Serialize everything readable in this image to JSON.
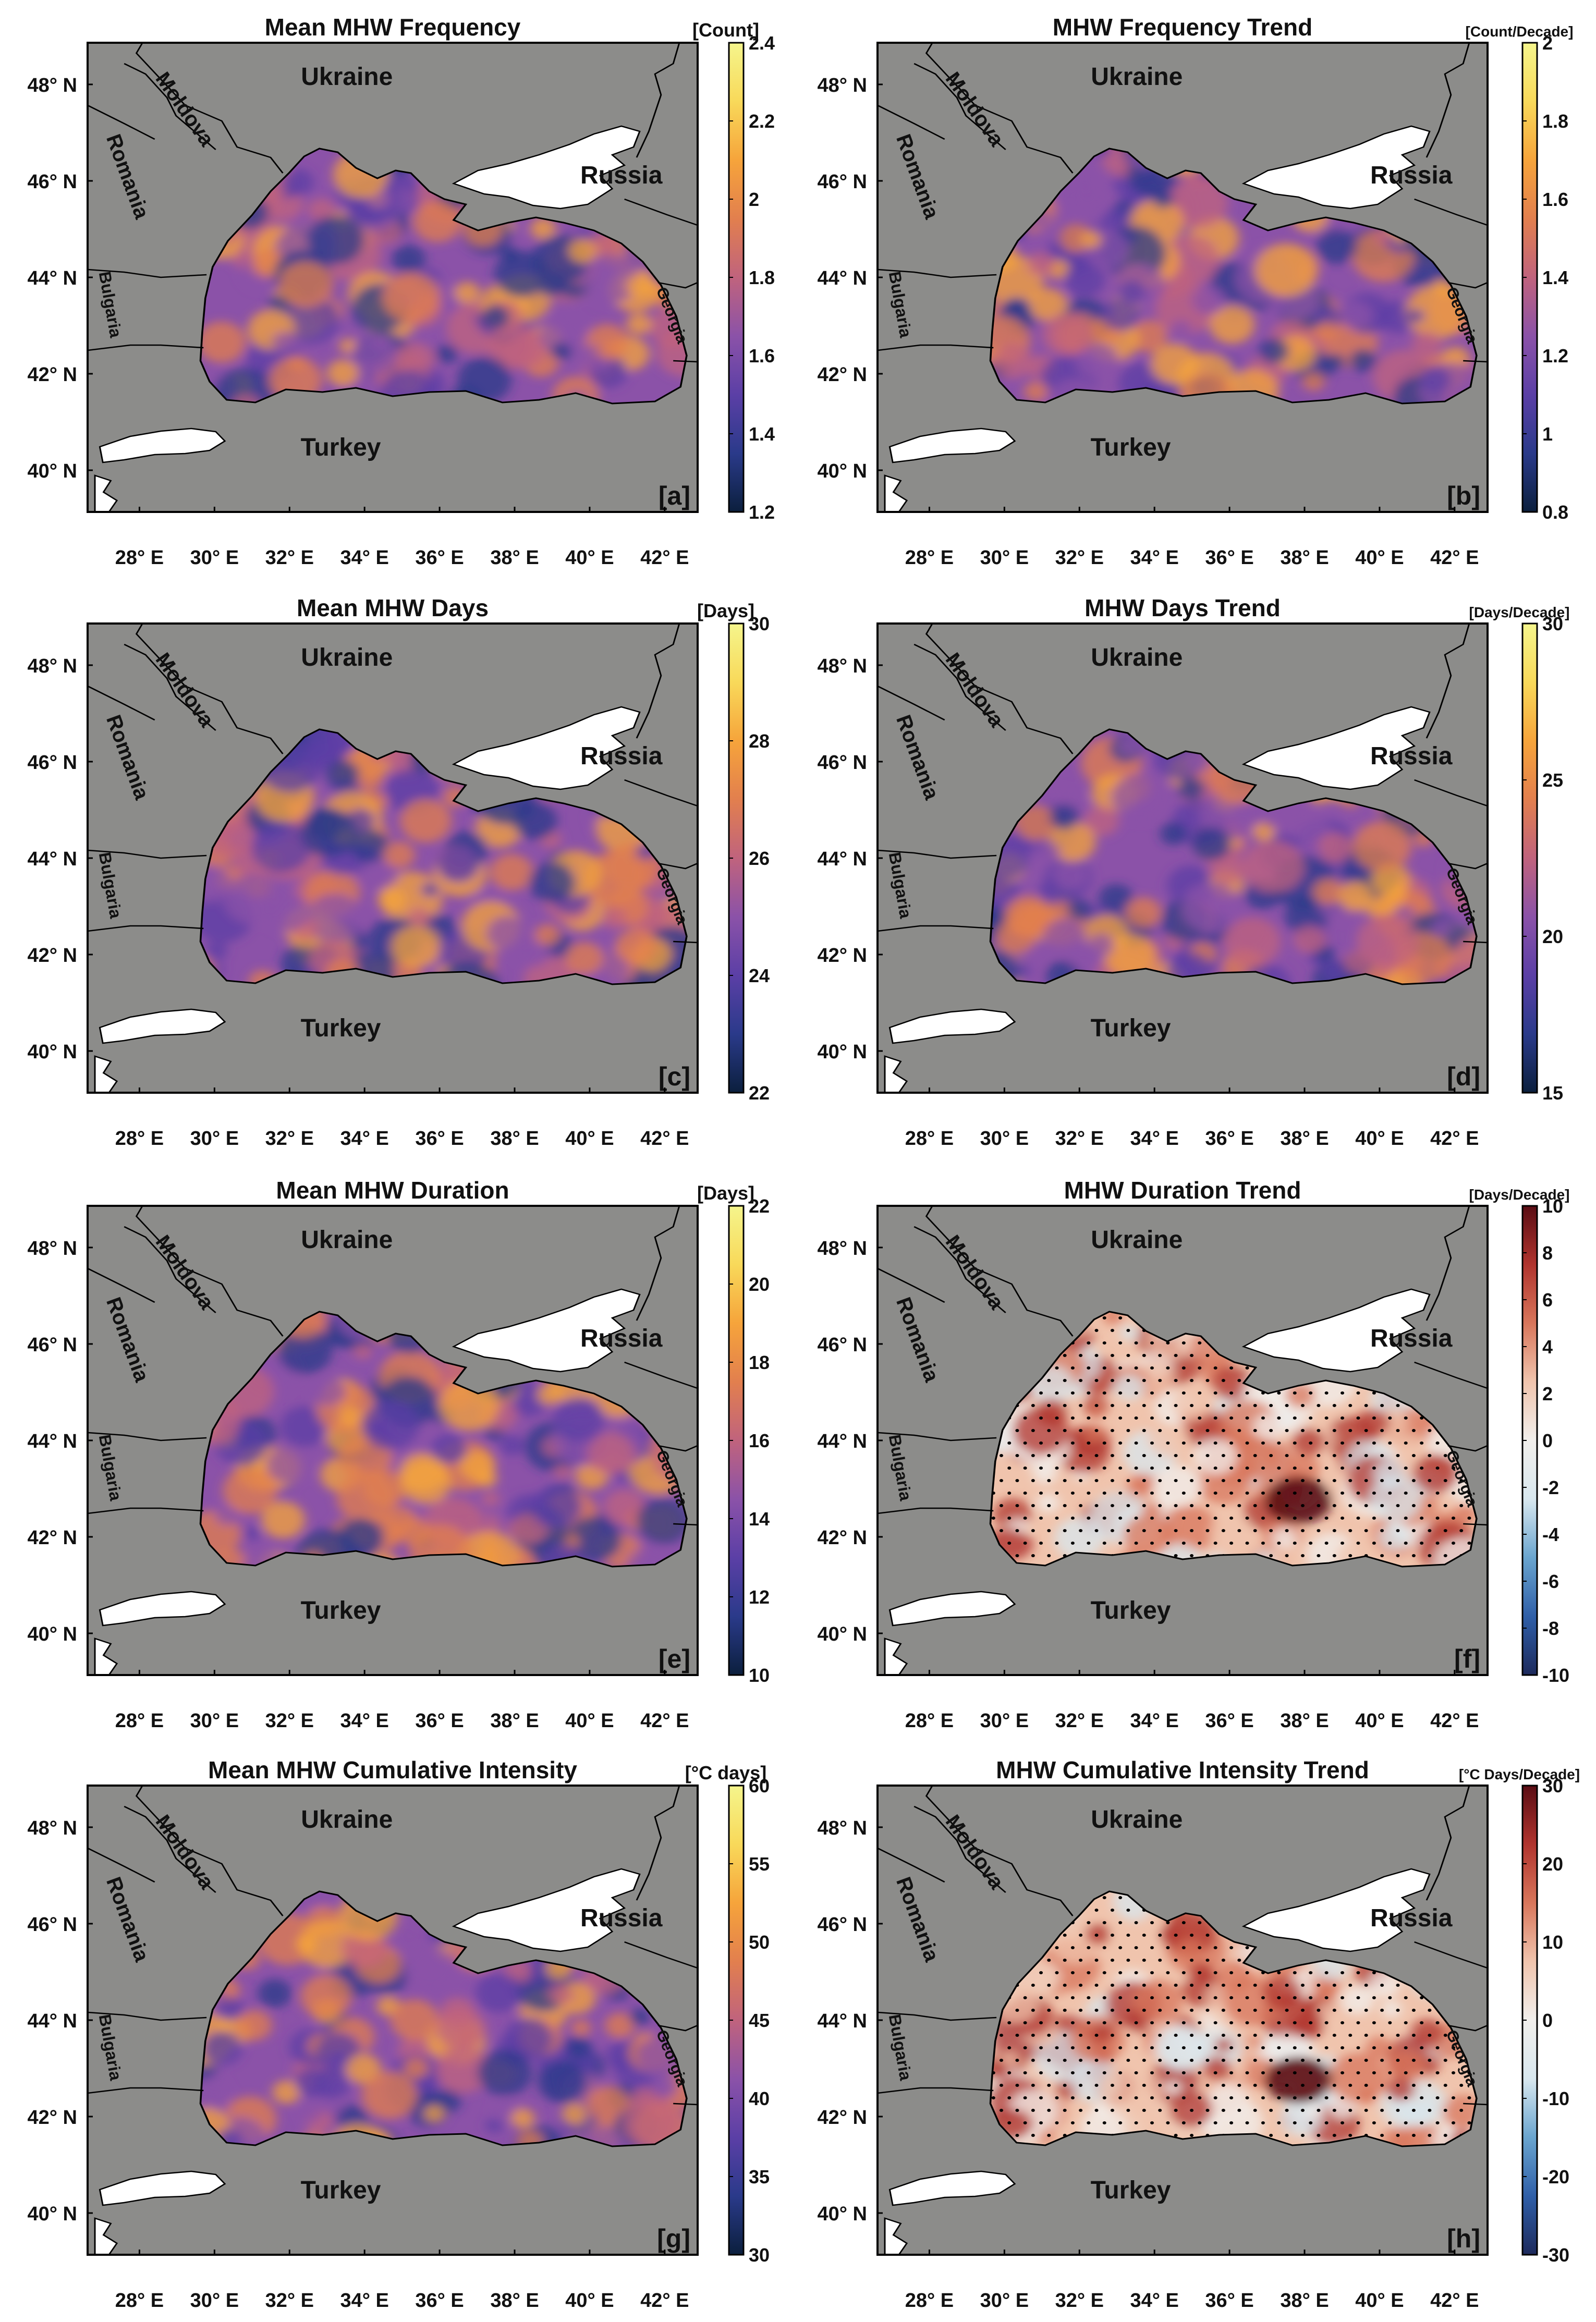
{
  "figure": {
    "lat_ticks": [
      "48° N",
      "46° N",
      "44° N",
      "42° N",
      "40° N"
    ],
    "lon_ticks": [
      "28° E",
      "30° E",
      "32° E",
      "34° E",
      "36° E",
      "38° E",
      "40° E",
      "42° E"
    ],
    "countries": [
      "Ukraine",
      "Moldova",
      "Romania",
      "Russia",
      "Bulgaria",
      "Georgia",
      "Turkey"
    ],
    "panels": [
      {
        "title": "Mean MHW Frequency",
        "letter": "[a]",
        "unit": "[Count]",
        "ticks": [
          "2.4",
          "2.2",
          "2",
          "1.8",
          "1.6",
          "1.4",
          "1.2"
        ],
        "range": [
          1.2,
          2.4
        ],
        "colormap": "thermal",
        "stipple": false
      },
      {
        "title": "MHW Frequency Trend",
        "letter": "[b]",
        "unit": "[Count/Decade]",
        "ticks": [
          "2",
          "1.8",
          "1.6",
          "1.4",
          "1.2",
          "1",
          "0.8"
        ],
        "range": [
          0.8,
          2.0
        ],
        "colormap": "thermal",
        "stipple": false
      },
      {
        "title": "Mean MHW Days",
        "letter": "[c]",
        "unit": "[Days]",
        "ticks": [
          "30",
          "28",
          "26",
          "24",
          "22"
        ],
        "range": [
          22,
          30
        ],
        "colormap": "thermal",
        "stipple": false
      },
      {
        "title": "MHW Days Trend",
        "letter": "[d]",
        "unit": "[Days/Decade]",
        "ticks": [
          "30",
          "25",
          "20",
          "15"
        ],
        "range": [
          15,
          30
        ],
        "colormap": "thermal",
        "stipple": false
      },
      {
        "title": "Mean MHW Duration",
        "letter": "[e]",
        "unit": "[Days]",
        "ticks": [
          "22",
          "20",
          "18",
          "16",
          "14",
          "12",
          "10"
        ],
        "range": [
          10,
          22
        ],
        "colormap": "thermal",
        "stipple": false
      },
      {
        "title": "MHW Duration Trend",
        "letter": "[f]",
        "unit": "[Days/Decade]",
        "ticks": [
          "10",
          "8",
          "6",
          "4",
          "2",
          "0",
          "-2",
          "-4",
          "-6",
          "-8",
          "-10"
        ],
        "range": [
          -10,
          10
        ],
        "colormap": "balance",
        "stipple": true
      },
      {
        "title": "Mean MHW Cumulative Intensity",
        "letter": "[g]",
        "unit": "[°C days]",
        "ticks": [
          "60",
          "55",
          "50",
          "45",
          "40",
          "35",
          "30"
        ],
        "range": [
          30,
          60
        ],
        "colormap": "thermal",
        "stipple": false
      },
      {
        "title": "MHW Cumulative Intensity Trend",
        "letter": "[h]",
        "unit": "[°C Days/Decade]",
        "ticks": [
          "30",
          "20",
          "10",
          "0",
          "-10",
          "-20",
          "-30"
        ],
        "range": [
          -30,
          30
        ],
        "colormap": "balance",
        "stipple": true
      }
    ],
    "colors": {
      "land": "#8c8c8a",
      "inland": "#ffffff",
      "thermal": [
        "#0b1f3d",
        "#2a3a8a",
        "#5b3fa6",
        "#8b52a8",
        "#c0637d",
        "#e27f4e",
        "#f6a43b",
        "#f8d95a",
        "#f5f58c"
      ],
      "balance": [
        "#1d2a5c",
        "#2f5fa8",
        "#6aa5cf",
        "#d8e7ee",
        "#f1efec",
        "#f0c4ad",
        "#d8765b",
        "#b0342e",
        "#5a0d14"
      ]
    }
  }
}
